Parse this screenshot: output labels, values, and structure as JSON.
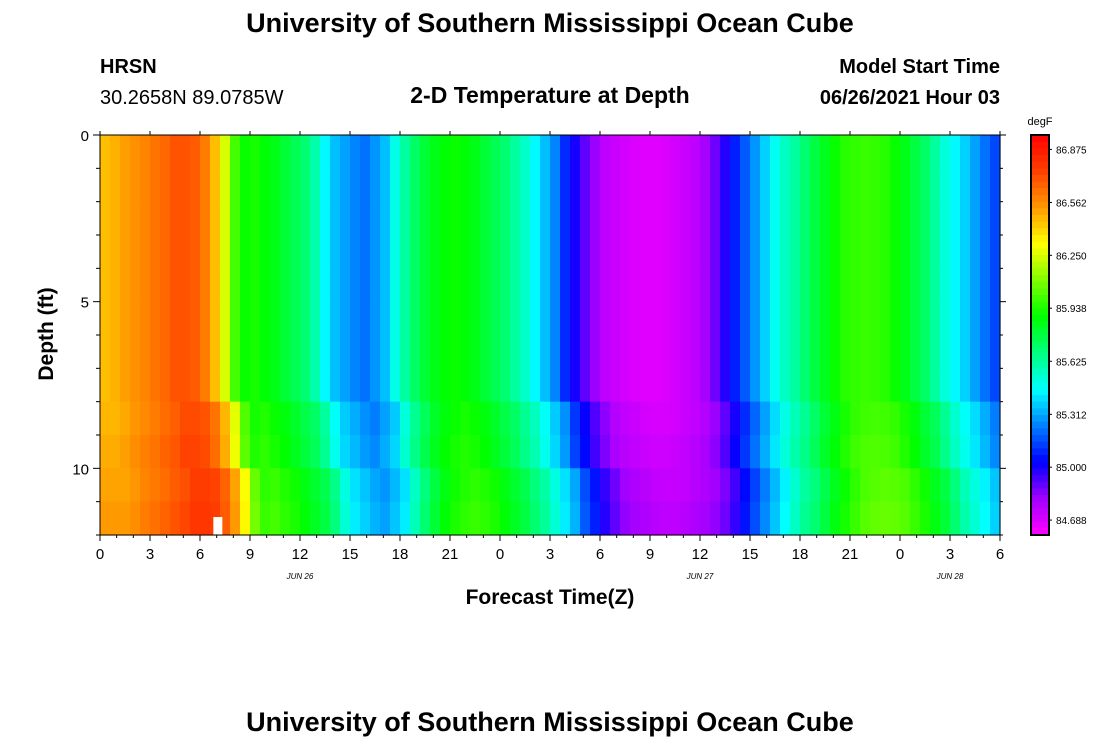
{
  "header": {
    "title": "University of Southern Mississippi Ocean Cube",
    "station": "HRSN",
    "coords": "30.2658N  89.0785W",
    "plot_title": "2-D Temperature at Depth",
    "model_label": "Model Start Time",
    "model_time": "06/26/2021 Hour 03"
  },
  "footer": {
    "title": "University of Southern Mississippi Ocean Cube"
  },
  "colors": {
    "palette": [
      "#ff00ff",
      "#a000ff",
      "#0000ff",
      "#0080ff",
      "#00ffff",
      "#00ff80",
      "#00ff00",
      "#80ff00",
      "#ffff00",
      "#ff9900",
      "#ff4000",
      "#ff0000"
    ]
  },
  "chart_data": {
    "type": "heatmap",
    "title": "2-D Temperature at Depth",
    "xlabel": "Forecast Time(Z)",
    "ylabel": "Depth (ft)",
    "x_range_hours": [
      0,
      54
    ],
    "y_range_ft": [
      0,
      12
    ],
    "x_ticks": [
      0,
      3,
      6,
      9,
      12,
      15,
      18,
      21,
      24,
      27,
      30,
      33,
      36,
      39,
      42,
      45,
      48,
      51,
      54
    ],
    "x_tick_labels": [
      "0",
      "3",
      "6",
      "9",
      "12",
      "15",
      "18",
      "21",
      "0",
      "3",
      "6",
      "9",
      "12",
      "15",
      "18",
      "21",
      "0",
      "3",
      "6"
    ],
    "date_labels": [
      {
        "hour": 12,
        "label": "JUN 26"
      },
      {
        "hour": 36,
        "label": "JUN 27"
      },
      {
        "hour": 51,
        "label": "JUN 28"
      }
    ],
    "y_ticks": [
      0,
      5,
      10
    ],
    "y_tick_labels": [
      "0",
      "5",
      "10"
    ],
    "colorbar": {
      "units": "degF",
      "min": 84.6,
      "max": 86.96,
      "labels": [
        "86.875",
        "86.562",
        "86.250",
        "85.938",
        "85.625",
        "85.312",
        "85.000",
        "84.688"
      ]
    },
    "surface_temps_degF": [
      86.45,
      86.48,
      86.52,
      86.55,
      86.58,
      86.62,
      86.65,
      86.7,
      86.7,
      86.68,
      86.6,
      86.45,
      86.25,
      86.0,
      85.9,
      85.92,
      85.88,
      85.85,
      85.8,
      85.75,
      85.7,
      85.6,
      85.45,
      85.35,
      85.3,
      85.25,
      85.22,
      85.28,
      85.35,
      85.5,
      85.62,
      85.72,
      85.8,
      85.85,
      85.88,
      85.9,
      85.88,
      85.85,
      85.8,
      85.75,
      85.7,
      85.62,
      85.55,
      85.45,
      85.35,
      85.25,
      85.1,
      85.0,
      84.9,
      84.82,
      84.75,
      84.72,
      84.7,
      84.68,
      84.67,
      84.67,
      84.68,
      84.7,
      84.72,
      84.75,
      84.8,
      84.88,
      84.98,
      85.08,
      85.18,
      85.28,
      85.38,
      85.48,
      85.56,
      85.62,
      85.7,
      85.78,
      85.84,
      85.9,
      85.95,
      85.97,
      85.98,
      85.97,
      85.95,
      85.9,
      85.85,
      85.78,
      85.72,
      85.62,
      85.52,
      85.45,
      85.38,
      85.3,
      85.22,
      85.15
    ]
  }
}
